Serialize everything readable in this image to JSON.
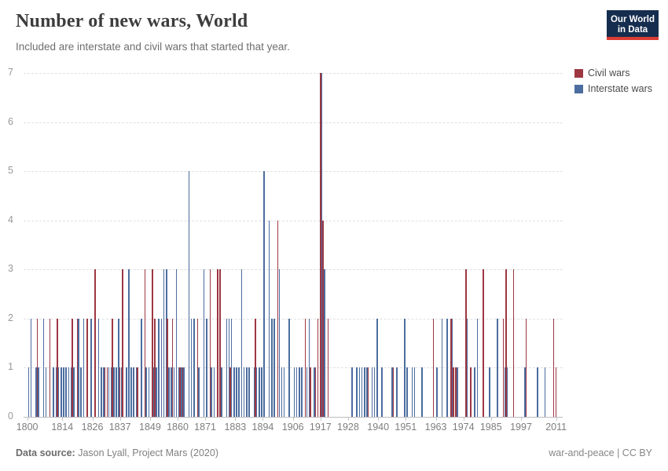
{
  "header": {
    "title": "Number of new wars, World",
    "subtitle": "Included are interstate and civil wars that started that year."
  },
  "logo": {
    "line1": "Our World",
    "line2": "in Data",
    "bg": "#152d4e",
    "accent": "#dc3d33"
  },
  "legend": [
    {
      "label": "Civil wars",
      "color": "#9d3742"
    },
    {
      "label": "Interstate wars",
      "color": "#4c6d9f"
    }
  ],
  "footer": {
    "source_label": "Data source:",
    "source_value": " Jason Lyall, Project Mars (2020)",
    "right": "war-and-peace | CC BY"
  },
  "chart_data": {
    "type": "bar",
    "title": "Number of new wars, World",
    "xlabel": "",
    "ylabel": "",
    "ylim": [
      0,
      7
    ],
    "yticks": [
      0,
      1,
      2,
      3,
      4,
      5,
      6,
      7
    ],
    "xticks": [
      1800,
      1814,
      1826,
      1837,
      1849,
      1860,
      1871,
      1883,
      1894,
      1906,
      1917,
      1928,
      1940,
      1951,
      1963,
      1974,
      1985,
      1997,
      2011
    ],
    "x_range": [
      1800,
      2011
    ],
    "grid": "horizontal dashed",
    "legend_position": "top-right",
    "columns": [
      "year",
      "civil_wars",
      "interstate_wars"
    ],
    "series": [
      {
        "name": "Civil wars",
        "color": "#9d3742"
      },
      {
        "name": "Interstate wars",
        "color": "#4c6d9f"
      }
    ],
    "data": [
      [
        1800,
        0,
        1
      ],
      [
        1801,
        0,
        2
      ],
      [
        1803,
        0,
        1
      ],
      [
        1804,
        2,
        1
      ],
      [
        1806,
        0,
        2
      ],
      [
        1807,
        0,
        1
      ],
      [
        1809,
        2,
        0
      ],
      [
        1810,
        0,
        1
      ],
      [
        1811,
        0,
        1
      ],
      [
        1812,
        2,
        1
      ],
      [
        1813,
        0,
        1
      ],
      [
        1814,
        0,
        1
      ],
      [
        1815,
        0,
        1
      ],
      [
        1816,
        0,
        1
      ],
      [
        1817,
        0,
        1
      ],
      [
        1818,
        2,
        1
      ],
      [
        1820,
        2,
        2
      ],
      [
        1821,
        0,
        1
      ],
      [
        1822,
        0,
        2
      ],
      [
        1824,
        2,
        0
      ],
      [
        1825,
        0,
        2
      ],
      [
        1827,
        3,
        0
      ],
      [
        1828,
        0,
        2
      ],
      [
        1829,
        0,
        1
      ],
      [
        1830,
        0,
        1
      ],
      [
        1831,
        1,
        0
      ],
      [
        1832,
        1,
        1
      ],
      [
        1833,
        0,
        1
      ],
      [
        1834,
        2,
        1
      ],
      [
        1835,
        0,
        1
      ],
      [
        1836,
        0,
        2
      ],
      [
        1837,
        1,
        1
      ],
      [
        1838,
        3,
        0
      ],
      [
        1839,
        0,
        1
      ],
      [
        1840,
        0,
        3
      ],
      [
        1841,
        0,
        1
      ],
      [
        1842,
        0,
        1
      ],
      [
        1843,
        0,
        1
      ],
      [
        1844,
        1,
        0
      ],
      [
        1845,
        0,
        2
      ],
      [
        1847,
        3,
        1
      ],
      [
        1848,
        0,
        1
      ],
      [
        1850,
        3,
        1
      ],
      [
        1851,
        2,
        1
      ],
      [
        1852,
        0,
        2
      ],
      [
        1853,
        0,
        2
      ],
      [
        1854,
        0,
        3
      ],
      [
        1855,
        0,
        3
      ],
      [
        1856,
        2,
        1
      ],
      [
        1857,
        0,
        1
      ],
      [
        1858,
        2,
        1
      ],
      [
        1859,
        0,
        3
      ],
      [
        1860,
        0,
        1
      ],
      [
        1861,
        1,
        1
      ],
      [
        1862,
        1,
        1
      ],
      [
        1864,
        0,
        5
      ],
      [
        1865,
        0,
        2
      ],
      [
        1866,
        0,
        2
      ],
      [
        1868,
        2,
        1
      ],
      [
        1870,
        0,
        3
      ],
      [
        1871,
        0,
        2
      ],
      [
        1873,
        3,
        1
      ],
      [
        1874,
        0,
        1
      ],
      [
        1876,
        3,
        0
      ],
      [
        1877,
        3,
        1
      ],
      [
        1879,
        0,
        2
      ],
      [
        1880,
        0,
        2
      ],
      [
        1881,
        1,
        2
      ],
      [
        1882,
        0,
        1
      ],
      [
        1883,
        0,
        1
      ],
      [
        1884,
        0,
        1
      ],
      [
        1885,
        0,
        3
      ],
      [
        1886,
        0,
        1
      ],
      [
        1887,
        0,
        1
      ],
      [
        1888,
        0,
        1
      ],
      [
        1890,
        0,
        1
      ],
      [
        1891,
        2,
        1
      ],
      [
        1892,
        0,
        1
      ],
      [
        1893,
        0,
        1
      ],
      [
        1894,
        0,
        5
      ],
      [
        1896,
        0,
        4
      ],
      [
        1897,
        0,
        2
      ],
      [
        1898,
        0,
        2
      ],
      [
        1900,
        4,
        3
      ],
      [
        1901,
        0,
        1
      ],
      [
        1902,
        0,
        1
      ],
      [
        1904,
        0,
        2
      ],
      [
        1906,
        0,
        1
      ],
      [
        1907,
        0,
        1
      ],
      [
        1908,
        0,
        1
      ],
      [
        1909,
        0,
        1
      ],
      [
        1911,
        2,
        1
      ],
      [
        1912,
        0,
        2
      ],
      [
        1913,
        1,
        0
      ],
      [
        1914,
        0,
        1
      ],
      [
        1915,
        1,
        0
      ],
      [
        1916,
        2,
        0
      ],
      [
        1917,
        7,
        7
      ],
      [
        1918,
        4,
        3
      ],
      [
        1920,
        2,
        0
      ],
      [
        1929,
        0,
        1
      ],
      [
        1931,
        0,
        1
      ],
      [
        1932,
        0,
        1
      ],
      [
        1933,
        0,
        1
      ],
      [
        1934,
        0,
        1
      ],
      [
        1935,
        0,
        1
      ],
      [
        1936,
        1,
        0
      ],
      [
        1937,
        0,
        1
      ],
      [
        1938,
        0,
        1
      ],
      [
        1939,
        0,
        2
      ],
      [
        1941,
        0,
        1
      ],
      [
        1945,
        0,
        1
      ],
      [
        1946,
        1,
        0
      ],
      [
        1947,
        0,
        1
      ],
      [
        1950,
        0,
        2
      ],
      [
        1951,
        0,
        1
      ],
      [
        1953,
        0,
        1
      ],
      [
        1954,
        0,
        1
      ],
      [
        1957,
        0,
        1
      ],
      [
        1962,
        2,
        0
      ],
      [
        1963,
        0,
        1
      ],
      [
        1965,
        0,
        2
      ],
      [
        1967,
        0,
        2
      ],
      [
        1969,
        2,
        2
      ],
      [
        1970,
        1,
        0
      ],
      [
        1971,
        1,
        1
      ],
      [
        1975,
        3,
        2
      ],
      [
        1977,
        1,
        0
      ],
      [
        1978,
        0,
        1
      ],
      [
        1979,
        0,
        2
      ],
      [
        1982,
        3,
        0
      ],
      [
        1984,
        0,
        1
      ],
      [
        1987,
        0,
        2
      ],
      [
        1990,
        2,
        1
      ],
      [
        1991,
        3,
        1
      ],
      [
        1994,
        3,
        0
      ],
      [
        1998,
        0,
        1
      ],
      [
        1999,
        2,
        0
      ],
      [
        2003,
        0,
        1
      ],
      [
        2006,
        0,
        1
      ],
      [
        2010,
        2,
        0
      ],
      [
        2011,
        1,
        0
      ]
    ]
  }
}
